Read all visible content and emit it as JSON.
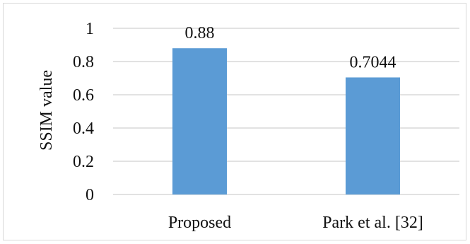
{
  "chart_data": {
    "type": "bar",
    "categories": [
      "Proposed",
      "Park et al. [32]"
    ],
    "values": [
      0.88,
      0.7044
    ],
    "value_labels": [
      "0.88",
      "0.7044"
    ],
    "title": "",
    "xlabel": "",
    "ylabel": "SSIM value",
    "ylim": [
      0,
      1
    ],
    "yticks": [
      0,
      0.2,
      0.4,
      0.6,
      0.8,
      1
    ],
    "ytick_labels": [
      "0",
      "0.2",
      "0.4",
      "0.6",
      "0.8",
      "1"
    ],
    "grid": true,
    "legend": "none",
    "bar_color": "#5b9bd5",
    "grid_color": "#d9d9d9"
  }
}
